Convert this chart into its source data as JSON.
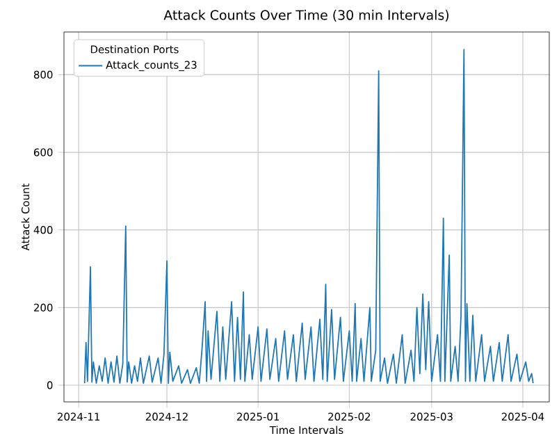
{
  "chart_data": {
    "type": "line",
    "title": "Attack Counts Over Time (30 min Intervals)",
    "xlabel": "Time Intervals",
    "ylabel": "Attack Count",
    "legend_title": "Destination Ports",
    "x": [
      "2024-11-03",
      "2024-11-03T12:00",
      "2024-11-04",
      "2024-11-05",
      "2024-11-05T12:00",
      "2024-11-06",
      "2024-11-07",
      "2024-11-08",
      "2024-11-09",
      "2024-11-10",
      "2024-11-11",
      "2024-11-12",
      "2024-11-13",
      "2024-11-14",
      "2024-11-15",
      "2024-11-16",
      "2024-11-17",
      "2024-11-17T12:00",
      "2024-11-18",
      "2024-11-19",
      "2024-11-20",
      "2024-11-21",
      "2024-11-22",
      "2024-11-23",
      "2024-11-25",
      "2024-11-26",
      "2024-11-28",
      "2024-11-29",
      "2024-11-30",
      "2024-12-01",
      "2024-12-01T12:00",
      "2024-12-02",
      "2024-12-03",
      "2024-12-05",
      "2024-12-06",
      "2024-12-08",
      "2024-12-09",
      "2024-12-11",
      "2024-12-12",
      "2024-12-13",
      "2024-12-14",
      "2024-12-14T12:00",
      "2024-12-15",
      "2024-12-16",
      "2024-12-18",
      "2024-12-19",
      "2024-12-20",
      "2024-12-21",
      "2024-12-23",
      "2024-12-24",
      "2024-12-25",
      "2024-12-26",
      "2024-12-27",
      "2024-12-27T12:00",
      "2024-12-29",
      "2024-12-30",
      "2025-01-01",
      "2025-01-02",
      "2025-01-04",
      "2025-01-05",
      "2025-01-07",
      "2025-01-08",
      "2025-01-10",
      "2025-01-11",
      "2025-01-13",
      "2025-01-14",
      "2025-01-16",
      "2025-01-17",
      "2025-01-19",
      "2025-01-20",
      "2025-01-22",
      "2025-01-23",
      "2025-01-24",
      "2025-01-24T12:00",
      "2025-01-26",
      "2025-01-27",
      "2025-01-29",
      "2025-01-30",
      "2025-02-01",
      "2025-02-02",
      "2025-02-03",
      "2025-02-03T12:00",
      "2025-02-05",
      "2025-02-06",
      "2025-02-08",
      "2025-02-08T12:00",
      "2025-02-10",
      "2025-02-11",
      "2025-02-11T12:00",
      "2025-02-13",
      "2025-02-14",
      "2025-02-16",
      "2025-02-17",
      "2025-02-19",
      "2025-02-20",
      "2025-02-22",
      "2025-02-23",
      "2025-02-24",
      "2025-02-25",
      "2025-02-26",
      "2025-02-27",
      "2025-02-28",
      "2025-03-01",
      "2025-03-03",
      "2025-03-04",
      "2025-03-05",
      "2025-03-05T12:00",
      "2025-03-07",
      "2025-03-07T12:00",
      "2025-03-09",
      "2025-03-10",
      "2025-03-11",
      "2025-03-12",
      "2025-03-12T12:00",
      "2025-03-13",
      "2025-03-14",
      "2025-03-15",
      "2025-03-16",
      "2025-03-18",
      "2025-03-19",
      "2025-03-21",
      "2025-03-22",
      "2025-03-24",
      "2025-03-25",
      "2025-03-27",
      "2025-03-28",
      "2025-03-30",
      "2025-03-31",
      "2025-04-02",
      "2025-04-03",
      "2025-04-04",
      "2025-04-04T12:00"
    ],
    "series": [
      {
        "name": "Attack_counts_23",
        "color": "#1f77b4",
        "values": [
          5,
          110,
          10,
          305,
          8,
          60,
          5,
          50,
          10,
          70,
          5,
          60,
          8,
          75,
          5,
          55,
          410,
          8,
          60,
          5,
          50,
          10,
          70,
          5,
          75,
          8,
          70,
          5,
          80,
          320,
          5,
          85,
          10,
          50,
          5,
          40,
          5,
          45,
          5,
          100,
          215,
          10,
          140,
          15,
          190,
          10,
          150,
          15,
          215,
          10,
          175,
          15,
          240,
          10,
          130,
          15,
          150,
          10,
          145,
          15,
          120,
          10,
          140,
          15,
          130,
          10,
          160,
          15,
          150,
          10,
          170,
          15,
          260,
          10,
          195,
          15,
          175,
          10,
          140,
          10,
          210,
          10,
          120,
          10,
          200,
          10,
          90,
          810,
          10,
          70,
          5,
          80,
          5,
          130,
          5,
          90,
          10,
          200,
          30,
          235,
          40,
          215,
          10,
          130,
          10,
          430,
          10,
          335,
          10,
          100,
          10,
          180,
          865,
          10,
          210,
          10,
          180,
          10,
          130,
          10,
          100,
          10,
          110,
          10,
          130,
          10,
          80,
          10,
          60,
          10,
          30,
          5
        ]
      }
    ],
    "xlim": [
      "2024-10-27",
      "2025-04-10"
    ],
    "xticks": [
      {
        "value": "2024-11-01",
        "label": "2024-11"
      },
      {
        "value": "2024-12-01",
        "label": "2024-12"
      },
      {
        "value": "2025-01-01",
        "label": "2025-01"
      },
      {
        "value": "2025-02-01",
        "label": "2025-02"
      },
      {
        "value": "2025-03-01",
        "label": "2025-03"
      },
      {
        "value": "2025-04-01",
        "label": "2025-04"
      }
    ],
    "ylim": [
      -43,
      910
    ],
    "yticks": [
      0,
      200,
      400,
      600,
      800
    ],
    "grid": true,
    "legend": "top left"
  }
}
